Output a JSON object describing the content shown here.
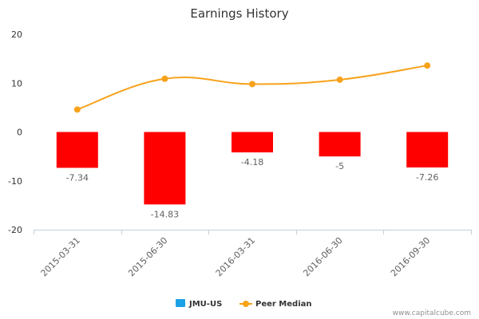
{
  "chart_data": {
    "type": "bar",
    "title": "Earnings History",
    "categories": [
      "2015-03-31",
      "2015-06-30",
      "2016-03-31",
      "2016-06-30",
      "2016-09-30"
    ],
    "series": [
      {
        "name": "JMU-US",
        "type": "bar",
        "values": [
          -7.34,
          -14.83,
          -4.18,
          -5,
          -7.26
        ],
        "color": "#ff0000",
        "legend_color": "#1ca0e6"
      },
      {
        "name": "Peer Median",
        "type": "line",
        "values": [
          4.6,
          10.9,
          9.8,
          10.7,
          13.6
        ],
        "color": "#f7a21b"
      }
    ],
    "data_labels": [
      "-7.34",
      "-14.83",
      "-4.18",
      "-5",
      "-7.26"
    ],
    "yticks": [
      "20",
      "10",
      "0",
      "-10",
      "-20"
    ],
    "ylim": [
      -20,
      20
    ],
    "xlabel": "",
    "ylabel": "",
    "grid": false,
    "legend_position": "bottom-center"
  },
  "credit": "www.capitalcube.com"
}
